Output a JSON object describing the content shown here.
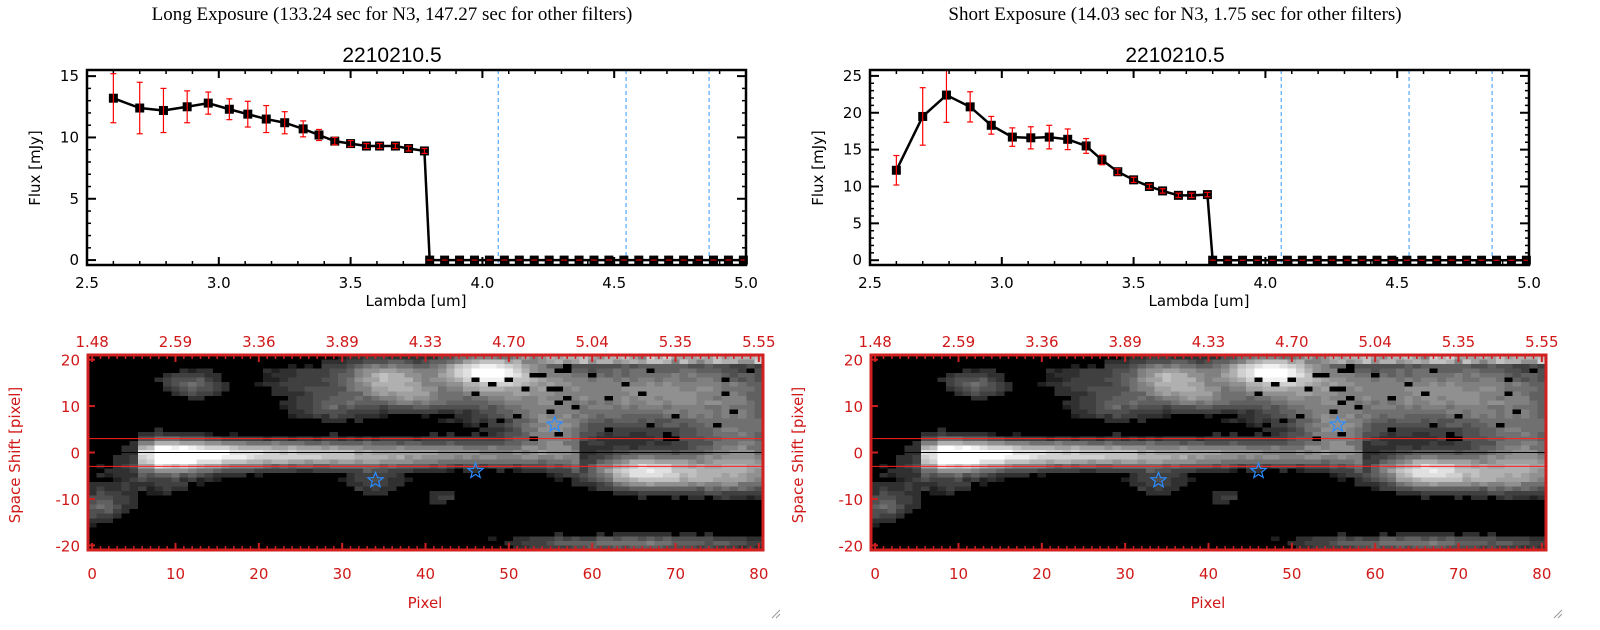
{
  "colors": {
    "line": "#000000",
    "error": "#ff0000",
    "dashed": "#3399ff",
    "frame": "#d02020",
    "star": "#2a8cff"
  },
  "chart_data": [
    {
      "type": "line",
      "title": "Long Exposure (133.24 sec for N3, 147.27 sec for other filters)",
      "subtitle": "2210210.5",
      "xlabel": "Lambda [um]",
      "ylabel": "Flux [mJy]",
      "xlim": [
        2.5,
        5.0
      ],
      "ylim": [
        -0.4,
        15.5
      ],
      "xticks": [
        "2.5",
        "3.0",
        "3.5",
        "4.0",
        "4.5",
        "5.0"
      ],
      "yticks": [
        "0",
        "5",
        "10",
        "15"
      ],
      "vlines": [
        4.06,
        4.545,
        4.86
      ],
      "x": [
        2.6,
        2.7,
        2.79,
        2.88,
        2.96,
        3.04,
        3.11,
        3.18,
        3.25,
        3.32,
        3.38,
        3.44,
        3.5,
        3.56,
        3.61,
        3.67,
        3.72,
        3.78
      ],
      "y": [
        13.2,
        12.4,
        12.2,
        12.5,
        12.8,
        12.3,
        11.9,
        11.5,
        11.2,
        10.7,
        10.2,
        9.7,
        9.5,
        9.3,
        9.3,
        9.3,
        9.1,
        8.9
      ],
      "err": [
        2.0,
        2.1,
        1.8,
        1.3,
        0.9,
        0.85,
        1.05,
        1.1,
        0.9,
        0.65,
        0.45,
        0.3,
        0.25,
        0.2,
        0.2,
        0.2,
        0.2,
        0.2
      ],
      "zero_x_start": 3.8,
      "zero_x_end": 4.99,
      "zero_count": 22
    },
    {
      "type": "line",
      "title": "Short Exposure (14.03 sec for N3, 1.75 sec for other filters)",
      "subtitle": "2210210.5",
      "xlabel": "Lambda [um]",
      "ylabel": "Flux [mJy]",
      "xlim": [
        2.5,
        5.0
      ],
      "ylim": [
        -0.65,
        25.8
      ],
      "xticks": [
        "2.5",
        "3.0",
        "3.5",
        "4.0",
        "4.5",
        "5.0"
      ],
      "yticks": [
        "0",
        "5",
        "10",
        "15",
        "20",
        "25"
      ],
      "vlines": [
        4.06,
        4.545,
        4.86
      ],
      "x": [
        2.6,
        2.7,
        2.79,
        2.88,
        2.96,
        3.04,
        3.11,
        3.18,
        3.25,
        3.32,
        3.38,
        3.44,
        3.5,
        3.56,
        3.61,
        3.67,
        3.72,
        3.78
      ],
      "y": [
        12.2,
        19.5,
        22.4,
        20.8,
        18.3,
        16.7,
        16.6,
        16.7,
        16.4,
        15.5,
        13.6,
        12.0,
        10.9,
        10.0,
        9.4,
        8.8,
        8.8,
        8.9
      ],
      "err": [
        2.0,
        3.9,
        3.7,
        2.05,
        1.2,
        1.25,
        1.5,
        1.6,
        1.4,
        1.0,
        0.65,
        0.4,
        0.35,
        0.3,
        0.3,
        0.3,
        0.3,
        0.3
      ],
      "zero_x_start": 3.8,
      "zero_x_end": 4.99,
      "zero_count": 22
    },
    {
      "type": "heatmap",
      "xlabel": "Pixel",
      "ylabel": "Space Shift [pixel]",
      "xlim": [
        0,
        80
      ],
      "ylim": [
        -21,
        21
      ],
      "xticks": [
        "0",
        "10",
        "20",
        "30",
        "40",
        "50",
        "60",
        "70",
        "80"
      ],
      "top_xticks": [
        "1.48",
        "2.59",
        "3.36",
        "3.89",
        "4.33",
        "4.70",
        "5.04",
        "5.35",
        "5.55"
      ],
      "yticks": [
        "20",
        "10",
        "0",
        "-10",
        "-20"
      ],
      "hlines_red": [
        3,
        -3
      ],
      "hline_black": 0,
      "stars": [
        [
          34,
          -6
        ],
        [
          46,
          -4
        ],
        [
          55.5,
          6
        ]
      ]
    },
    {
      "type": "heatmap",
      "xlabel": "Pixel",
      "ylabel": "Space Shift [pixel]",
      "xlim": [
        0,
        80
      ],
      "ylim": [
        -21,
        21
      ],
      "xticks": [
        "0",
        "10",
        "20",
        "30",
        "40",
        "50",
        "60",
        "70",
        "80"
      ],
      "top_xticks": [
        "1.48",
        "2.59",
        "3.36",
        "3.89",
        "4.33",
        "4.70",
        "5.04",
        "5.35",
        "5.55"
      ],
      "yticks": [
        "20",
        "10",
        "0",
        "-10",
        "-20"
      ],
      "hlines_red": [
        3,
        -3
      ],
      "hline_black": 0,
      "stars": [
        [
          34,
          -6
        ],
        [
          46,
          -4
        ],
        [
          55.5,
          6
        ]
      ]
    }
  ]
}
